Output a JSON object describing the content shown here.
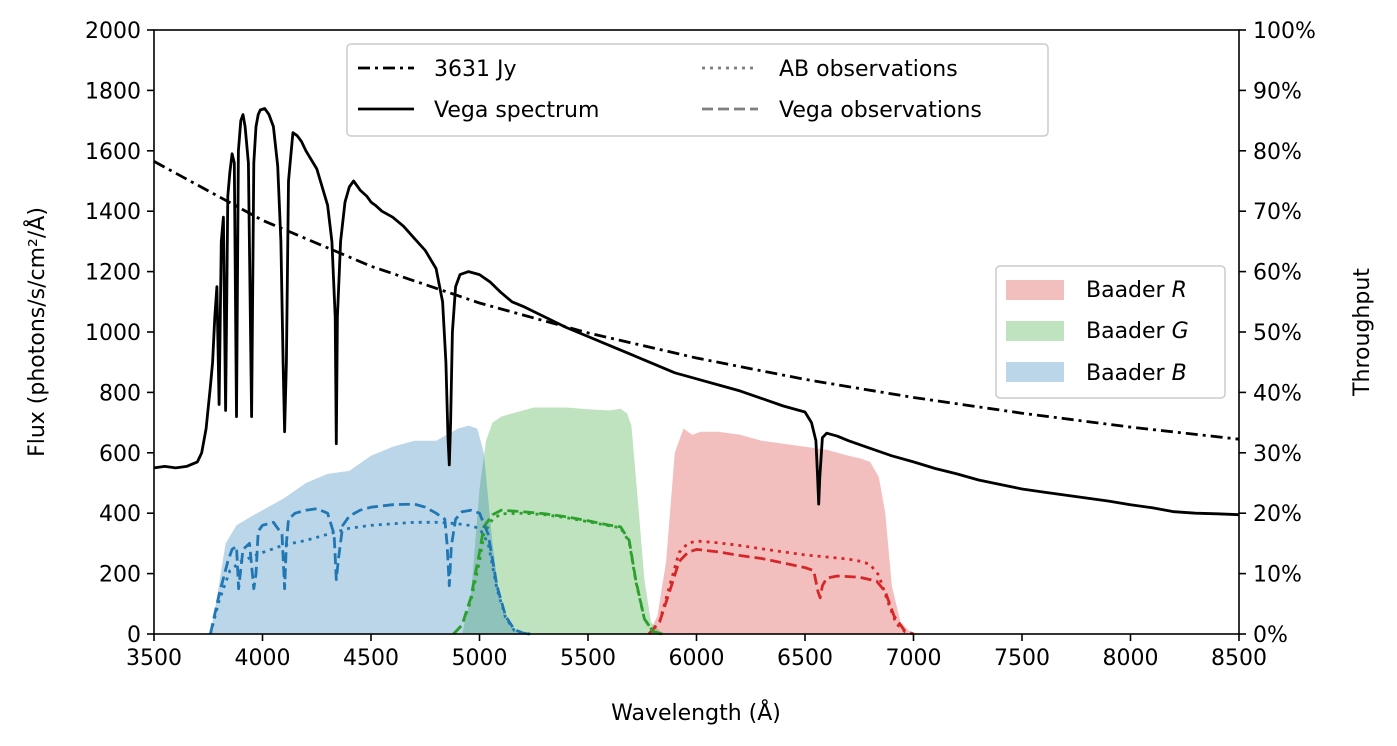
{
  "chart_data": {
    "type": "line",
    "title": "",
    "xlabel": "Wavelength (Å)",
    "ylabel": "Flux (photons/s/cm²/Å)",
    "y2label": "Throughput",
    "xlim": [
      3500,
      8500
    ],
    "ylim": [
      0,
      2000
    ],
    "y2lim": [
      0,
      100
    ],
    "xticks": [
      "3500",
      "4000",
      "4500",
      "5000",
      "5500",
      "6000",
      "6500",
      "7000",
      "7500",
      "8000",
      "8500"
    ],
    "yticks": [
      "0",
      "200",
      "400",
      "600",
      "800",
      "1000",
      "1200",
      "1400",
      "1600",
      "1800",
      "2000"
    ],
    "y2ticks": [
      "0%",
      "10%",
      "20%",
      "30%",
      "40%",
      "50%",
      "60%",
      "70%",
      "80%",
      "90%",
      "100%"
    ],
    "grid": false,
    "legend_lines": {
      "placement": "top-center",
      "entries": [
        {
          "label": "3631 Jy",
          "style": "dashdot",
          "color": "#000000"
        },
        {
          "label": "AB observations",
          "style": "dotted",
          "color": "#7f7f7f"
        },
        {
          "label": "Vega spectrum",
          "style": "solid",
          "color": "#000000"
        },
        {
          "label": "Vega observations",
          "style": "dashed",
          "color": "#7f7f7f"
        }
      ]
    },
    "legend_filters": {
      "placement": "center-right",
      "entries": [
        {
          "label": "Baader ",
          "italic": "R",
          "color": "#d62728"
        },
        {
          "label": "Baader ",
          "italic": "G",
          "color": "#2ca02c"
        },
        {
          "label": "Baader ",
          "italic": "B",
          "color": "#1f77b4"
        }
      ]
    },
    "series": [
      {
        "name": "3631 Jy",
        "axis": "left",
        "style": "dashdot",
        "color": "#000000",
        "x": [
          3500,
          4000,
          4500,
          5000,
          5500,
          6000,
          6500,
          7000,
          7500,
          8000,
          8500
        ],
        "y": [
          1565,
          1370,
          1218,
          1096,
          997,
          914,
          843,
          783,
          731,
          685,
          645
        ]
      },
      {
        "name": "Vega spectrum",
        "axis": "left",
        "style": "solid",
        "color": "#000000",
        "x": [
          3500,
          3550,
          3600,
          3650,
          3700,
          3720,
          3740,
          3760,
          3770,
          3780,
          3790,
          3800,
          3810,
          3820,
          3830,
          3840,
          3850,
          3860,
          3870,
          3880,
          3889,
          3900,
          3910,
          3920,
          3935,
          3950,
          3960,
          3970,
          3980,
          3990,
          4010,
          4030,
          4050,
          4070,
          4085,
          4095,
          4102,
          4110,
          4120,
          4140,
          4160,
          4180,
          4200,
          4250,
          4300,
          4320,
          4335,
          4340,
          4345,
          4360,
          4380,
          4400,
          4420,
          4450,
          4480,
          4500,
          4520,
          4550,
          4600,
          4650,
          4700,
          4750,
          4800,
          4830,
          4845,
          4855,
          4861,
          4867,
          4875,
          4890,
          4910,
          4950,
          5000,
          5050,
          5100,
          5150,
          5200,
          5300,
          5400,
          5500,
          5600,
          5700,
          5800,
          5900,
          6000,
          6100,
          6200,
          6300,
          6400,
          6500,
          6530,
          6550,
          6558,
          6563,
          6568,
          6580,
          6600,
          6650,
          6700,
          6800,
          6900,
          7000,
          7100,
          7200,
          7300,
          7400,
          7500,
          7600,
          7700,
          7800,
          7900,
          8000,
          8100,
          8200,
          8300,
          8400,
          8500
        ],
        "y": [
          550,
          555,
          550,
          555,
          570,
          600,
          680,
          820,
          900,
          1050,
          1150,
          760,
          1300,
          1380,
          740,
          1450,
          1530,
          1590,
          1560,
          720,
          1600,
          1700,
          1720,
          1680,
          1560,
          720,
          1560,
          1680,
          1720,
          1735,
          1740,
          1720,
          1680,
          1550,
          1300,
          900,
          670,
          900,
          1500,
          1660,
          1650,
          1630,
          1600,
          1540,
          1420,
          1300,
          1050,
          630,
          1050,
          1300,
          1430,
          1480,
          1500,
          1470,
          1450,
          1430,
          1420,
          1400,
          1380,
          1350,
          1310,
          1270,
          1210,
          1100,
          900,
          650,
          560,
          700,
          1000,
          1150,
          1190,
          1200,
          1190,
          1165,
          1130,
          1100,
          1085,
          1050,
          1015,
          985,
          955,
          925,
          895,
          865,
          845,
          825,
          805,
          780,
          755,
          735,
          700,
          640,
          520,
          430,
          520,
          650,
          665,
          655,
          640,
          615,
          590,
          570,
          548,
          530,
          510,
          495,
          480,
          470,
          460,
          450,
          440,
          428,
          418,
          405,
          400,
          398,
          395
        ]
      },
      {
        "name": "Baader R",
        "axis": "right",
        "type": "area",
        "color": "#d62728",
        "alpha": 0.3,
        "x": [
          5780,
          5820,
          5860,
          5900,
          5940,
          5980,
          6020,
          6100,
          6200,
          6300,
          6400,
          6500,
          6600,
          6700,
          6760,
          6800,
          6840,
          6870,
          6900,
          6940,
          6980,
          7020
        ],
        "y": [
          0,
          3,
          12,
          30,
          34,
          33,
          33.5,
          33.5,
          33,
          32,
          31.5,
          31,
          30.5,
          29.5,
          29,
          28.5,
          26,
          20,
          8,
          2,
          0.5,
          0
        ]
      },
      {
        "name": "Baader G",
        "axis": "right",
        "type": "area",
        "color": "#2ca02c",
        "alpha": 0.3,
        "x": [
          4920,
          4960,
          5000,
          5030,
          5060,
          5100,
          5150,
          5200,
          5250,
          5300,
          5400,
          5500,
          5600,
          5650,
          5680,
          5700,
          5730,
          5760,
          5790,
          5830,
          5860
        ],
        "y": [
          0,
          6,
          24,
          32,
          35,
          36,
          36.5,
          37,
          37.5,
          37.5,
          37.5,
          37.2,
          37,
          37.3,
          36.5,
          34.5,
          22,
          9,
          2,
          0.5,
          0
        ]
      },
      {
        "name": "Baader B",
        "axis": "right",
        "type": "area",
        "color": "#1f77b4",
        "alpha": 0.3,
        "x": [
          3760,
          3790,
          3830,
          3880,
          3950,
          4000,
          4100,
          4200,
          4300,
          4400,
          4500,
          4600,
          4700,
          4800,
          4850,
          4900,
          4950,
          4990,
          5020,
          5060,
          5100,
          5150,
          5200
        ],
        "y": [
          0,
          6,
          15,
          18,
          19.5,
          20.5,
          22.5,
          25,
          26.5,
          27,
          29.5,
          31,
          32,
          32,
          33,
          34,
          34.5,
          34,
          30,
          15,
          4,
          1,
          0
        ]
      },
      {
        "name": "Vega observations (R)",
        "axis": "left",
        "style": "dashed",
        "color": "#d62728",
        "x": [
          5780,
          5830,
          5880,
          5920,
          5960,
          6000,
          6100,
          6200,
          6300,
          6400,
          6500,
          6540,
          6560,
          6570,
          6580,
          6600,
          6650,
          6700,
          6750,
          6800,
          6830,
          6870,
          6910,
          6960,
          7000
        ],
        "y": [
          0,
          40,
          150,
          240,
          270,
          280,
          272,
          260,
          250,
          235,
          220,
          210,
          140,
          120,
          160,
          185,
          192,
          190,
          188,
          180,
          175,
          140,
          60,
          10,
          0
        ]
      },
      {
        "name": "AB observations (R)",
        "axis": "left",
        "style": "dotted",
        "color": "#d62728",
        "x": [
          5780,
          5830,
          5880,
          5920,
          5960,
          6000,
          6100,
          6200,
          6300,
          6400,
          6500,
          6600,
          6700,
          6760,
          6800,
          6840,
          6880,
          6920,
          6960,
          7000
        ],
        "y": [
          0,
          40,
          170,
          270,
          300,
          308,
          302,
          293,
          282,
          272,
          262,
          255,
          248,
          240,
          230,
          195,
          110,
          35,
          8,
          0
        ]
      },
      {
        "name": "Vega observations (G)",
        "axis": "left",
        "style": "dashed",
        "color": "#2ca02c",
        "x": [
          4880,
          4920,
          4960,
          5000,
          5020,
          5060,
          5100,
          5200,
          5300,
          5400,
          5500,
          5600,
          5650,
          5690,
          5720,
          5760,
          5800,
          5840
        ],
        "y": [
          0,
          30,
          120,
          270,
          355,
          395,
          410,
          405,
          398,
          388,
          375,
          360,
          355,
          310,
          180,
          50,
          8,
          0
        ]
      },
      {
        "name": "AB observations (G)",
        "axis": "left",
        "style": "dotted",
        "color": "#2ca02c",
        "x": [
          4880,
          4920,
          4960,
          5000,
          5020,
          5060,
          5100,
          5200,
          5300,
          5400,
          5500,
          5600,
          5650,
          5690,
          5720,
          5760,
          5800,
          5840
        ],
        "y": [
          0,
          30,
          110,
          240,
          330,
          380,
          398,
          400,
          395,
          385,
          372,
          358,
          352,
          305,
          175,
          50,
          8,
          0
        ]
      },
      {
        "name": "Vega observations (B)",
        "axis": "left",
        "style": "dashed",
        "color": "#1f77b4",
        "x": [
          3760,
          3800,
          3840,
          3860,
          3880,
          3890,
          3910,
          3940,
          3960,
          3970,
          3980,
          4000,
          4050,
          4090,
          4100,
          4102,
          4110,
          4120,
          4150,
          4200,
          4250,
          4300,
          4330,
          4340,
          4350,
          4370,
          4400,
          4450,
          4500,
          4600,
          4700,
          4750,
          4800,
          4840,
          4850,
          4861,
          4870,
          4890,
          4920,
          4960,
          5000,
          5040,
          5080,
          5120,
          5160,
          5200,
          5240
        ],
        "y": [
          0,
          130,
          240,
          280,
          290,
          150,
          280,
          300,
          150,
          200,
          340,
          360,
          370,
          330,
          180,
          150,
          300,
          380,
          400,
          410,
          415,
          400,
          330,
          180,
          250,
          360,
          390,
          410,
          420,
          428,
          430,
          420,
          400,
          380,
          300,
          160,
          290,
          380,
          405,
          410,
          400,
          330,
          160,
          60,
          15,
          3,
          0
        ]
      },
      {
        "name": "AB observations (B)",
        "axis": "left",
        "style": "dotted",
        "color": "#1f77b4",
        "x": [
          3760,
          3800,
          3850,
          3900,
          3950,
          4000,
          4100,
          4200,
          4300,
          4400,
          4500,
          4600,
          4700,
          4800,
          4850,
          4900,
          4950,
          5000,
          5040,
          5080,
          5120,
          5160,
          5200,
          5240
        ],
        "y": [
          0,
          110,
          210,
          240,
          255,
          270,
          295,
          310,
          330,
          350,
          360,
          365,
          370,
          370,
          368,
          365,
          360,
          350,
          300,
          150,
          55,
          12,
          2,
          0
        ]
      }
    ]
  }
}
